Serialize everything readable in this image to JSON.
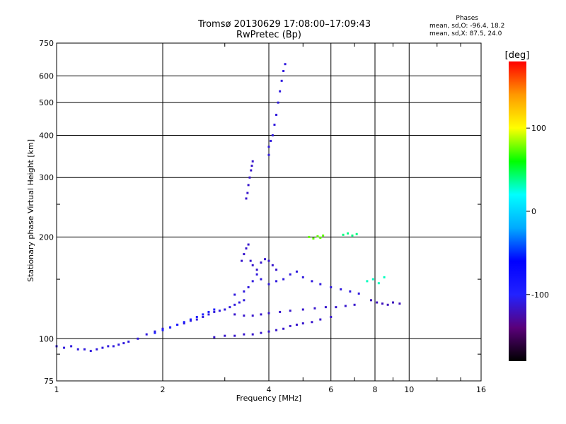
{
  "title_line1": "Tromsø 20130629 17:08:00–17:09:43",
  "title_line2": "RwPretec (Bp)",
  "phases": {
    "header": "Phases",
    "line_o": "mean, sd,O: -96.4, 18.2",
    "line_x": "mean, sd,X:  87.5, 24.0"
  },
  "chart_data": {
    "type": "scatter",
    "title": "Tromsø 20130629 17:08:00–17:09:43",
    "subtitle": "RwPretec (Bp)",
    "xlabel": "Frequency [MHz]",
    "ylabel": "Stationary phase Virtual Height [km]",
    "x_scale": "log",
    "y_scale": "log",
    "xlim": [
      1,
      16
    ],
    "ylim": [
      75,
      750
    ],
    "x_ticks": [
      1,
      2,
      4,
      6,
      8,
      10,
      16
    ],
    "x_tick_labels": [
      "1",
      "2",
      "4",
      "6",
      "8",
      "10",
      "16"
    ],
    "y_ticks": [
      75,
      100,
      200,
      300,
      400,
      500,
      600,
      750
    ],
    "y_tick_labels": [
      "75",
      "100",
      "200",
      "300",
      "400",
      "500",
      "600",
      "750"
    ],
    "grid": true,
    "colorbar": {
      "label": "[deg]",
      "range": [
        -180,
        180
      ],
      "ticks": [
        100,
        0,
        -100
      ],
      "tick_labels": [
        "100",
        "0",
        "-100"
      ],
      "colormap": [
        "#000000",
        "#5a007a",
        "#2222ff",
        "#0000ff",
        "#00aaff",
        "#00ffff",
        "#00ff00",
        "#ffff00",
        "#ff9900",
        "#ff0000"
      ]
    },
    "color_scale": "phase",
    "traces": [
      {
        "name": "",
        "phase": -110,
        "points": [
          [
            1.0,
            95
          ],
          [
            1.05,
            94
          ],
          [
            1.1,
            95
          ],
          [
            1.15,
            93
          ],
          [
            1.2,
            93
          ],
          [
            1.25,
            92
          ],
          [
            1.3,
            93
          ],
          [
            1.35,
            94
          ],
          [
            1.4,
            95
          ],
          [
            1.45,
            95
          ],
          [
            1.5,
            96
          ],
          [
            1.55,
            97
          ],
          [
            1.6,
            98
          ],
          [
            1.7,
            100
          ],
          [
            1.8,
            103
          ],
          [
            1.9,
            105
          ],
          [
            2.0,
            107
          ],
          [
            2.1,
            108
          ],
          [
            2.2,
            110
          ],
          [
            2.3,
            111
          ],
          [
            2.4,
            113
          ],
          [
            2.5,
            114
          ],
          [
            2.6,
            116
          ],
          [
            2.7,
            118
          ],
          [
            2.8,
            120
          ],
          [
            2.9,
            121
          ],
          [
            3.0,
            122
          ],
          [
            3.1,
            124
          ],
          [
            3.2,
            126
          ],
          [
            3.3,
            128
          ],
          [
            3.4,
            130
          ]
        ]
      },
      {
        "name": "",
        "phase": -95,
        "points": [
          [
            1.9,
            104
          ],
          [
            2.0,
            106
          ],
          [
            2.1,
            108
          ],
          [
            2.2,
            110
          ],
          [
            2.3,
            112
          ],
          [
            2.4,
            114
          ],
          [
            2.5,
            116
          ],
          [
            2.6,
            118
          ],
          [
            2.7,
            120
          ],
          [
            2.8,
            122
          ]
        ]
      },
      {
        "name": "",
        "phase": -115,
        "points": [
          [
            2.8,
            101
          ],
          [
            3.0,
            102
          ],
          [
            3.2,
            102
          ],
          [
            3.4,
            103
          ],
          [
            3.6,
            103
          ],
          [
            3.8,
            104
          ],
          [
            4.0,
            105
          ],
          [
            4.2,
            106
          ],
          [
            4.4,
            107
          ],
          [
            4.6,
            109
          ],
          [
            4.8,
            110
          ],
          [
            5.0,
            111
          ],
          [
            5.3,
            112
          ],
          [
            5.6,
            114
          ],
          [
            6.0,
            116
          ]
        ]
      },
      {
        "name": "",
        "phase": -115,
        "points": [
          [
            3.2,
            118
          ],
          [
            3.4,
            117
          ],
          [
            3.6,
            117
          ],
          [
            3.8,
            118
          ],
          [
            4.0,
            119
          ],
          [
            4.3,
            120
          ],
          [
            4.6,
            121
          ],
          [
            5.0,
            122
          ],
          [
            5.4,
            123
          ],
          [
            5.8,
            124
          ],
          [
            6.2,
            124
          ],
          [
            6.6,
            125
          ],
          [
            7.0,
            126
          ]
        ]
      },
      {
        "name": "",
        "phase": -110,
        "points": [
          [
            3.2,
            135
          ],
          [
            3.4,
            138
          ],
          [
            3.5,
            142
          ],
          [
            3.6,
            148
          ],
          [
            3.7,
            155
          ],
          [
            3.8,
            150
          ],
          [
            4.0,
            145
          ],
          [
            4.2,
            148
          ],
          [
            4.4,
            150
          ],
          [
            4.6,
            155
          ],
          [
            4.8,
            158
          ],
          [
            5.0,
            152
          ],
          [
            5.3,
            148
          ],
          [
            5.6,
            145
          ],
          [
            6.0,
            142
          ],
          [
            6.4,
            140
          ],
          [
            6.8,
            138
          ],
          [
            7.2,
            136
          ]
        ]
      },
      {
        "name": "",
        "phase": -115,
        "points": [
          [
            3.35,
            170
          ],
          [
            3.4,
            178
          ],
          [
            3.45,
            185
          ],
          [
            3.5,
            190
          ],
          [
            3.55,
            170
          ],
          [
            3.6,
            165
          ],
          [
            3.7,
            160
          ],
          [
            3.8,
            168
          ],
          [
            3.9,
            172
          ],
          [
            4.0,
            170
          ],
          [
            4.1,
            165
          ],
          [
            4.2,
            160
          ]
        ]
      },
      {
        "name": "",
        "phase": -115,
        "points": [
          [
            3.45,
            260
          ],
          [
            3.48,
            270
          ],
          [
            3.5,
            285
          ],
          [
            3.53,
            300
          ],
          [
            3.56,
            315
          ],
          [
            3.58,
            325
          ],
          [
            3.6,
            335
          ]
        ]
      },
      {
        "name": "",
        "phase": -110,
        "points": [
          [
            4.0,
            350
          ],
          [
            4.0,
            370
          ],
          [
            4.05,
            385
          ],
          [
            4.1,
            400
          ],
          [
            4.15,
            430
          ],
          [
            4.2,
            460
          ],
          [
            4.25,
            500
          ],
          [
            4.3,
            540
          ],
          [
            4.35,
            580
          ],
          [
            4.4,
            620
          ],
          [
            4.45,
            650
          ]
        ]
      },
      {
        "name": "",
        "phase": 75,
        "points": [
          [
            5.2,
            200
          ],
          [
            5.35,
            198
          ],
          [
            5.5,
            201
          ],
          [
            5.6,
            199
          ],
          [
            5.7,
            202
          ]
        ]
      },
      {
        "name": "",
        "phase": 40,
        "points": [
          [
            6.5,
            203
          ],
          [
            6.7,
            205
          ],
          [
            6.9,
            202
          ],
          [
            7.1,
            204
          ]
        ]
      },
      {
        "name": "",
        "phase": -120,
        "points": [
          [
            7.8,
            130
          ],
          [
            8.1,
            128
          ],
          [
            8.4,
            127
          ],
          [
            8.7,
            126
          ],
          [
            9.0,
            128
          ],
          [
            9.4,
            127
          ]
        ]
      },
      {
        "name": "",
        "phase": 30,
        "points": [
          [
            7.6,
            148
          ],
          [
            7.9,
            150
          ],
          [
            8.2,
            146
          ],
          [
            8.5,
            152
          ]
        ]
      }
    ]
  }
}
